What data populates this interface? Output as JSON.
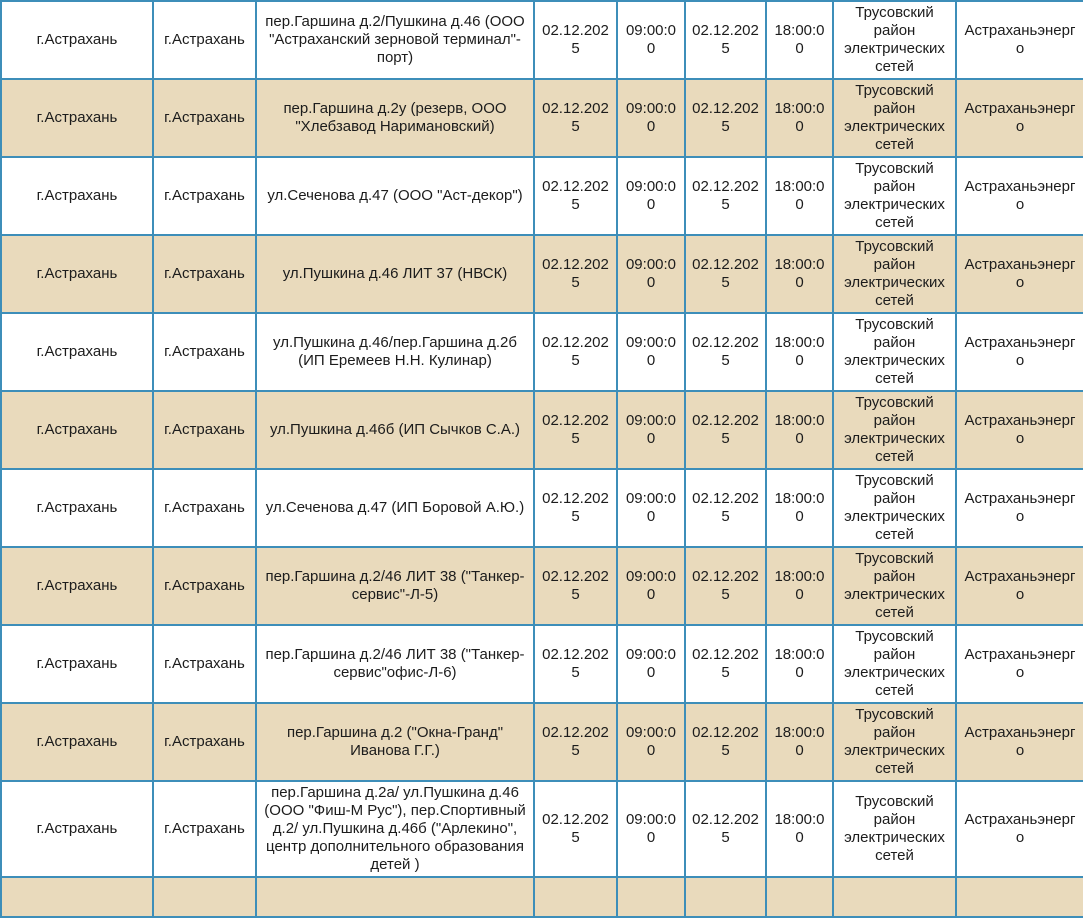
{
  "colors": {
    "border": "#3d8eb9",
    "stripe": "#e9dabc",
    "text": "#1c1c1c",
    "background": "#ffffff"
  },
  "table": {
    "columns": [
      "region",
      "city",
      "address",
      "start_date",
      "start_time",
      "end_date",
      "end_time",
      "district",
      "provider"
    ],
    "partial_next_row_visible": true,
    "rows": [
      {
        "region": "г.Астрахань",
        "city": "г.Астрахань",
        "address": "пер.Гаршина д.2/Пушкина д.46 (ООО \"Астраханский зерновой терминал\"-порт)",
        "start_date": "02.12.2025",
        "start_time": "09:00:00",
        "end_date": "02.12.2025",
        "end_time": "18:00:00",
        "district": "Трусовский район электрических сетей",
        "provider": "Астраханьэнерго"
      },
      {
        "region": "г.Астрахань",
        "city": "г.Астрахань",
        "address": "пер.Гаршина д.2у (резерв, ООО \"Хлебзавод Наримановский)",
        "start_date": "02.12.2025",
        "start_time": "09:00:00",
        "end_date": "02.12.2025",
        "end_time": "18:00:00",
        "district": "Трусовский район электрических сетей",
        "provider": "Астраханьэнерго"
      },
      {
        "region": "г.Астрахань",
        "city": "г.Астрахань",
        "address": "ул.Сеченова д.47 (ООО \"Аст-декор\")",
        "start_date": "02.12.2025",
        "start_time": "09:00:00",
        "end_date": "02.12.2025",
        "end_time": "18:00:00",
        "district": "Трусовский район электрических сетей",
        "provider": "Астраханьэнерго"
      },
      {
        "region": "г.Астрахань",
        "city": "г.Астрахань",
        "address": "ул.Пушкина д.46 ЛИТ 37 (НВСК)",
        "start_date": "02.12.2025",
        "start_time": "09:00:00",
        "end_date": "02.12.2025",
        "end_time": "18:00:00",
        "district": "Трусовский район электрических сетей",
        "provider": "Астраханьэнерго"
      },
      {
        "region": "г.Астрахань",
        "city": "г.Астрахань",
        "address": "ул.Пушкина д.46/пер.Гаршина д.2б (ИП Еремеев Н.Н. Кулинар)",
        "start_date": "02.12.2025",
        "start_time": "09:00:00",
        "end_date": "02.12.2025",
        "end_time": "18:00:00",
        "district": "Трусовский район электрических сетей",
        "provider": "Астраханьэнерго"
      },
      {
        "region": "г.Астрахань",
        "city": "г.Астрахань",
        "address": "ул.Пушкина д.46б (ИП Сычков С.А.)",
        "start_date": "02.12.2025",
        "start_time": "09:00:00",
        "end_date": "02.12.2025",
        "end_time": "18:00:00",
        "district": "Трусовский район электрических сетей",
        "provider": "Астраханьэнерго"
      },
      {
        "region": "г.Астрахань",
        "city": "г.Астрахань",
        "address": "ул.Сеченова д.47 (ИП Боровой А.Ю.)",
        "start_date": "02.12.2025",
        "start_time": "09:00:00",
        "end_date": "02.12.2025",
        "end_time": "18:00:00",
        "district": "Трусовский район электрических сетей",
        "provider": "Астраханьэнерго"
      },
      {
        "region": "г.Астрахань",
        "city": "г.Астрахань",
        "address": "пер.Гаршина д.2/46 ЛИТ 38 (\"Танкер-сервис\"-Л-5)",
        "start_date": "02.12.2025",
        "start_time": "09:00:00",
        "end_date": "02.12.2025",
        "end_time": "18:00:00",
        "district": "Трусовский район электрических сетей",
        "provider": "Астраханьэнерго"
      },
      {
        "region": "г.Астрахань",
        "city": "г.Астрахань",
        "address": "пер.Гаршина д.2/46 ЛИТ 38 (\"Танкер-сервис\"офис-Л-6)",
        "start_date": "02.12.2025",
        "start_time": "09:00:00",
        "end_date": "02.12.2025",
        "end_time": "18:00:00",
        "district": "Трусовский район электрических сетей",
        "provider": "Астраханьэнерго"
      },
      {
        "region": "г.Астрахань",
        "city": "г.Астрахань",
        "address": "пер.Гаршина д.2 (\"Окна-Гранд\" Иванова Г.Г.)",
        "start_date": "02.12.2025",
        "start_time": "09:00:00",
        "end_date": "02.12.2025",
        "end_time": "18:00:00",
        "district": "Трусовский район электрических сетей",
        "provider": "Астраханьэнерго"
      },
      {
        "region": "г.Астрахань",
        "city": "г.Астрахань",
        "address": "пер.Гаршина д.2а/ ул.Пушкина д.46 (ООО \"Фиш-М Рус\"), пер.Спортивный д.2/ ул.Пушкина д.46б (\"Арлекино\", центр дополнительного образования детей )",
        "start_date": "02.12.2025",
        "start_time": "09:00:00",
        "end_date": "02.12.2025",
        "end_time": "18:00:00",
        "district": "Трусовский район электрических сетей",
        "provider": "Астраханьэнерго"
      }
    ]
  }
}
